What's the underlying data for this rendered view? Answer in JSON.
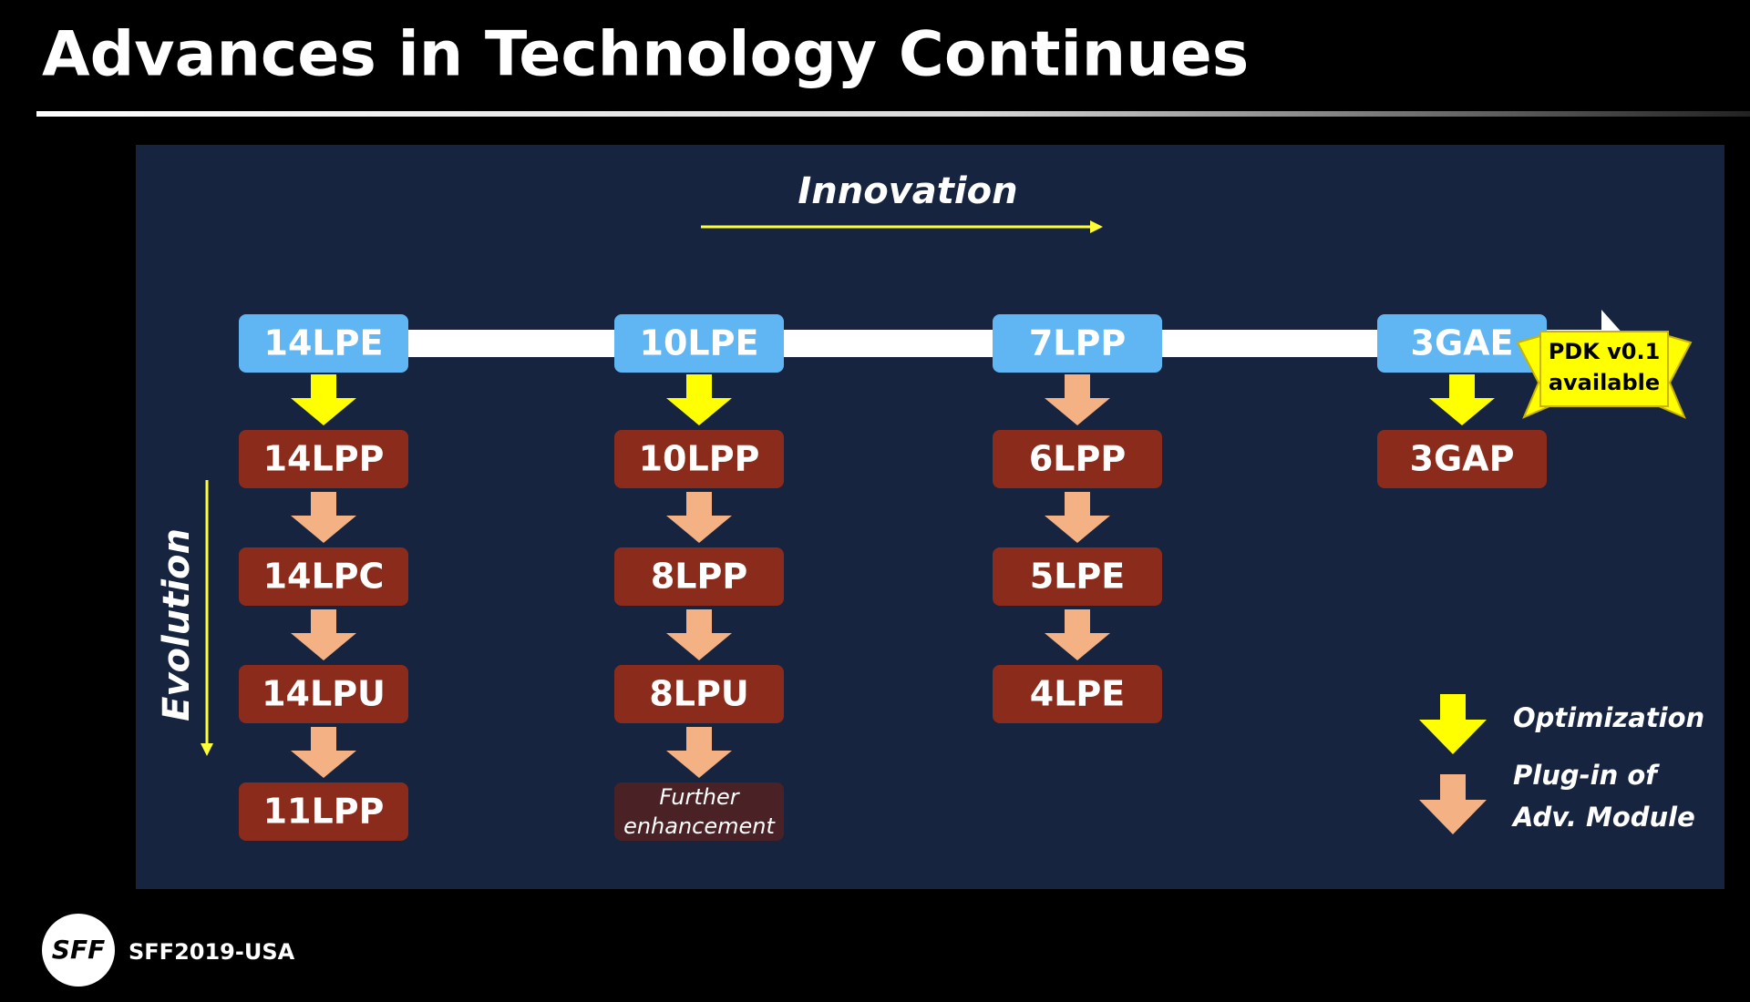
{
  "header": {
    "title": "Advances in Technology Continues"
  },
  "diagram": {
    "innovation_label": "Innovation",
    "evolution_label": "Evolution",
    "columns": [
      {
        "top": "14LPE",
        "items": [
          "14LPP",
          "14LPC",
          "14LPU",
          "11LPP"
        ]
      },
      {
        "top": "10LPE",
        "items": [
          "10LPP",
          "8LPP",
          "8LPU"
        ],
        "further": [
          "Further",
          "enhancement"
        ]
      },
      {
        "top": "7LPP",
        "items": [
          "6LPP",
          "5LPE",
          "4LPE"
        ]
      },
      {
        "top": "3GAE",
        "items": [
          "3GAP"
        ]
      }
    ],
    "badge": [
      "PDK v0.1",
      "available"
    ],
    "legend": {
      "optimization": "Optimization",
      "plug_in": [
        "Plug-in of",
        "Adv. Module"
      ]
    }
  },
  "footer": {
    "logo": "SFF",
    "event": "SFF2019-USA"
  }
}
